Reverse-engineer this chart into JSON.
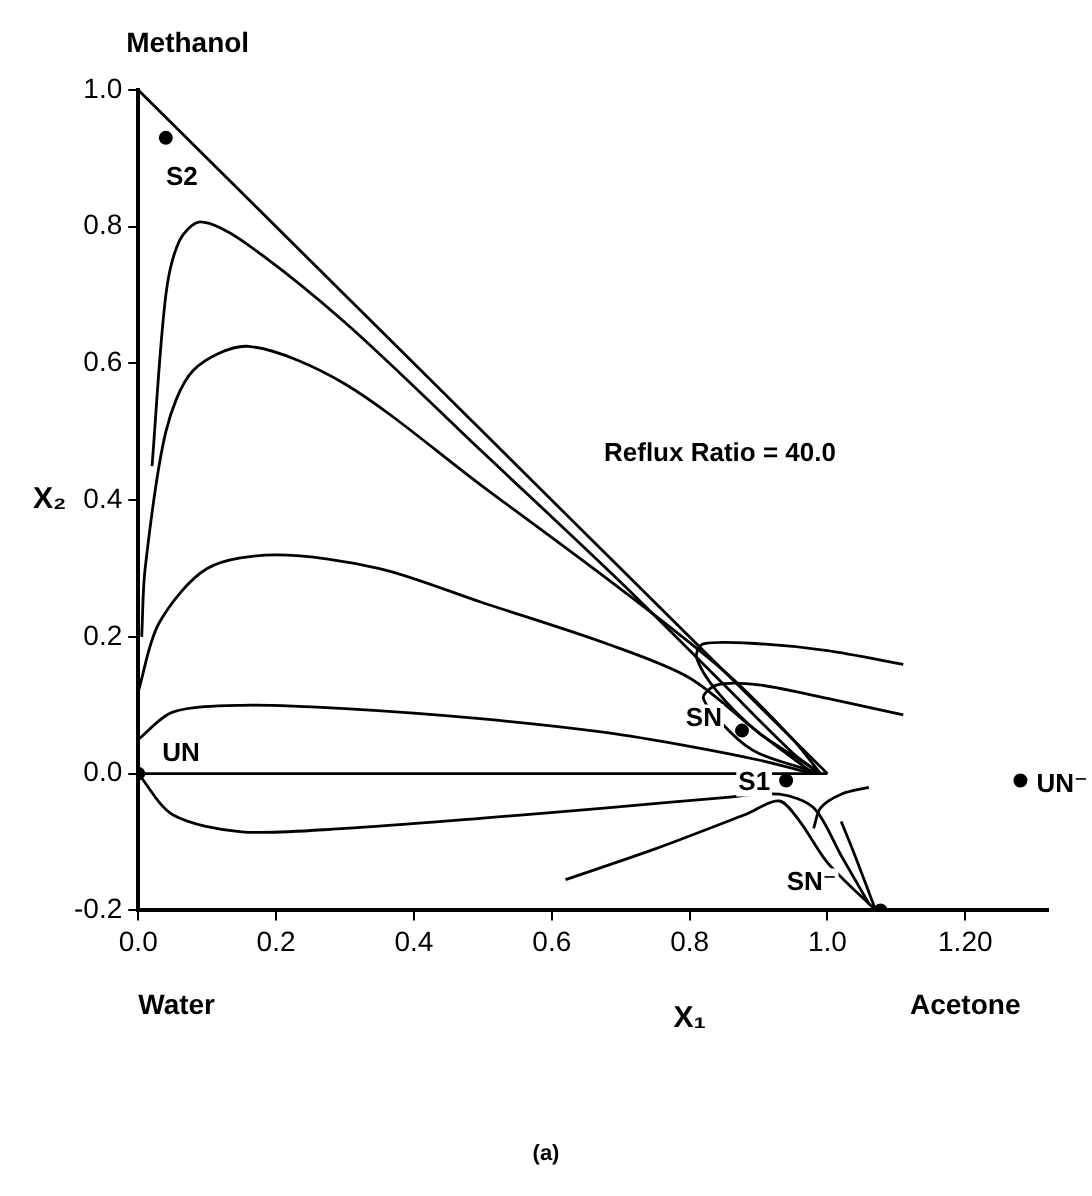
{
  "chart_data": {
    "type": "line",
    "xlabel": "X₁",
    "ylabel": "X₂",
    "xlim": [
      0,
      1.32
    ],
    "ylim": [
      -0.2,
      1.0
    ],
    "xticks": [
      {
        "value": 0,
        "label": "0.0"
      },
      {
        "value": 0.2,
        "label": "0.2"
      },
      {
        "value": 0.4,
        "label": "0.4"
      },
      {
        "value": 0.6,
        "label": "0.6"
      },
      {
        "value": 0.8,
        "label": "0.8"
      },
      {
        "value": 1.0,
        "label": "1.0"
      },
      {
        "value": 1.2,
        "label": "1.20"
      }
    ],
    "yticks": [
      {
        "value": -0.2,
        "label": "-0.2"
      },
      {
        "value": 0,
        "label": "0.0"
      },
      {
        "value": 0.2,
        "label": "0.2"
      },
      {
        "value": 0.4,
        "label": "0.4"
      },
      {
        "value": 0.6,
        "label": "0.6"
      },
      {
        "value": 0.8,
        "label": "0.8"
      },
      {
        "value": 1.0,
        "label": "1.0"
      }
    ],
    "grid": false,
    "legend": false,
    "marker": "none",
    "line_style": "solid",
    "series": [
      {
        "color": "#000000",
        "x": [
          0,
          1
        ],
        "values": [
          1,
          0
        ]
      },
      {
        "color": "#000000",
        "x": [
          0,
          1.0
        ],
        "values": [
          0,
          0
        ]
      },
      {
        "color": "#000000",
        "x": [
          0.02,
          0.04,
          0.06,
          0.09,
          0.15,
          0.3,
          0.5,
          0.7,
          0.85,
          0.95,
          0.99
        ],
        "values": [
          0.45,
          0.7,
          0.78,
          0.807,
          0.78,
          0.66,
          0.47,
          0.28,
          0.13,
          0.03,
          0.0
        ]
      },
      {
        "color": "#000000",
        "x": [
          0.005,
          0.01,
          0.04,
          0.08,
          0.16,
          0.3,
          0.5,
          0.7,
          0.85,
          0.95,
          0.99
        ],
        "values": [
          0.2,
          0.3,
          0.5,
          0.59,
          0.625,
          0.57,
          0.42,
          0.27,
          0.15,
          0.05,
          0.0
        ]
      },
      {
        "color": "#000000",
        "x": [
          0,
          0.03,
          0.1,
          0.2,
          0.35,
          0.5,
          0.68,
          0.8,
          0.9,
          0.98
        ],
        "values": [
          0.12,
          0.22,
          0.3,
          0.32,
          0.3,
          0.25,
          0.19,
          0.14,
          0.06,
          0.0
        ]
      },
      {
        "color": "#000000",
        "x": [
          0,
          0.05,
          0.15,
          0.3,
          0.5,
          0.68,
          0.8,
          0.9,
          0.98
        ],
        "values": [
          0.05,
          0.09,
          0.1,
          0.095,
          0.08,
          0.06,
          0.04,
          0.02,
          0.0
        ]
      },
      {
        "color": "#000000",
        "x": [
          0,
          0.05,
          0.15,
          0.3,
          0.5,
          0.68,
          0.85,
          0.93,
          0.98,
          1.02,
          1.06
        ],
        "values": [
          0,
          -0.06,
          -0.085,
          -0.08,
          -0.065,
          -0.05,
          -0.035,
          -0.03,
          -0.05,
          -0.12,
          -0.19
        ]
      },
      {
        "color": "#000000",
        "x": [
          0.62,
          0.75,
          0.88,
          0.93,
          0.96,
          1.0,
          1.07
        ],
        "values": [
          -0.155,
          -0.11,
          -0.06,
          -0.04,
          -0.07,
          -0.13,
          -0.2
        ]
      },
      {
        "color": "#000000",
        "x": [
          1.11,
          1.0,
          0.9,
          0.82,
          0.81,
          0.84,
          0.9,
          0.96,
          0.99
        ],
        "values": [
          0.16,
          0.18,
          0.19,
          0.19,
          0.17,
          0.12,
          0.06,
          0.02,
          0.0
        ]
      },
      {
        "color": "#000000",
        "x": [
          1.11,
          1.0,
          0.9,
          0.84,
          0.82,
          0.86,
          0.9,
          0.99
        ],
        "values": [
          0.086,
          0.11,
          0.13,
          0.13,
          0.11,
          0.06,
          0.03,
          0.0
        ]
      },
      {
        "color": "#000000",
        "x": [
          1.06,
          1.02,
          0.99,
          0.98
        ],
        "values": [
          -0.02,
          -0.03,
          -0.05,
          -0.08
        ]
      },
      {
        "color": "#000000",
        "x": [
          1.02,
          1.04,
          1.07
        ],
        "values": [
          -0.07,
          -0.12,
          -0.2
        ]
      },
      {
        "type": "scatter",
        "marker": "circle",
        "color": "#000000",
        "x": [
          0.04,
          0,
          0.876,
          0.94,
          1.28,
          1.077
        ],
        "values": [
          0.93,
          0,
          0.063,
          -0.01,
          -0.01,
          -0.2
        ]
      }
    ],
    "annotations": [
      "Methanol",
      "Water",
      "Acetone",
      "Reflux Ratio = 40.0",
      "(a)",
      {
        "text": "S2",
        "x": 0.04,
        "y": 0.93
      },
      {
        "text": "UN",
        "x": 0,
        "y": 0
      },
      {
        "text": "SN",
        "x": 0.876,
        "y": 0.063
      },
      {
        "text": "S1",
        "x": 0.94,
        "y": -0.01
      },
      {
        "text": "UN⁻",
        "x": 1.28,
        "y": -0.01
      },
      {
        "text": "SN⁻",
        "x": 1.077,
        "y": -0.2
      }
    ]
  }
}
